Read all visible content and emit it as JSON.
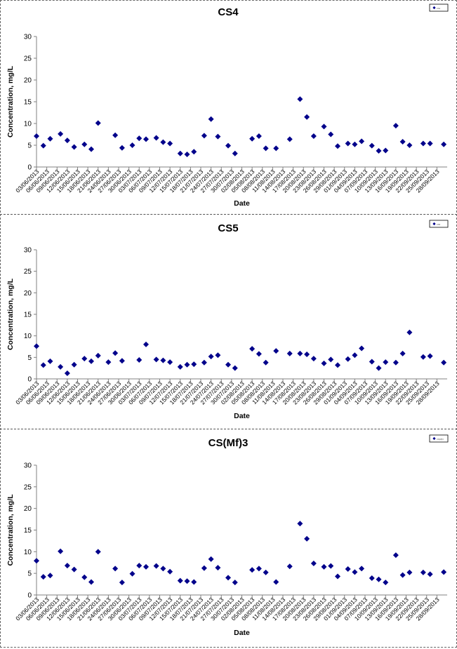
{
  "theme": {
    "marker_color": "#00008B",
    "axis_color": "#808080",
    "text_color": "#000000"
  },
  "chart_data": [
    {
      "type": "scatter",
      "title": "CS4",
      "xlabel": "Date",
      "ylabel": "Concentration, mg/L",
      "ylim": [
        0,
        30
      ],
      "yticks": [
        0,
        5,
        10,
        15,
        20,
        25,
        30
      ],
      "xlim": [
        "2013-06-03",
        "2013-10-01"
      ],
      "xtick_labels": [
        "03/06/2013",
        "06/06/2013",
        "09/06/2013",
        "12/06/2013",
        "15/06/2013",
        "18/06/2013",
        "21/06/2013",
        "24/06/2013",
        "27/06/2013",
        "30/06/2013",
        "03/07/2013",
        "06/07/2013",
        "09/07/2013",
        "12/07/2013",
        "15/07/2013",
        "18/07/2013",
        "21/07/2013",
        "24/07/2013",
        "27/07/2013",
        "30/07/2013",
        "02/08/2013",
        "05/08/2013",
        "08/08/2013",
        "11/08/2013",
        "14/08/2013",
        "17/08/2013",
        "20/08/2013",
        "23/08/2013",
        "26/08/2013",
        "29/08/2013",
        "01/09/2013",
        "04/09/2013",
        "07/09/2013",
        "10/09/2013",
        "13/09/2013",
        "16/09/2013",
        "19/09/2013",
        "22/09/2013",
        "25/09/2013",
        "28/09/2013"
      ],
      "legend": {
        "placement": "top-right",
        "entry": "CS4"
      },
      "grid": false,
      "points": [
        {
          "x": "2013-06-03",
          "y": 7.1
        },
        {
          "x": "2013-06-05",
          "y": 4.9
        },
        {
          "x": "2013-06-07",
          "y": 6.5
        },
        {
          "x": "2013-06-10",
          "y": 7.6
        },
        {
          "x": "2013-06-12",
          "y": 6.1
        },
        {
          "x": "2013-06-14",
          "y": 4.6
        },
        {
          "x": "2013-06-17",
          "y": 5.2
        },
        {
          "x": "2013-06-19",
          "y": 4.1
        },
        {
          "x": "2013-06-21",
          "y": 10.1
        },
        {
          "x": "2013-06-26",
          "y": 7.3
        },
        {
          "x": "2013-06-28",
          "y": 4.4
        },
        {
          "x": "2013-07-01",
          "y": 5.0
        },
        {
          "x": "2013-07-03",
          "y": 6.6
        },
        {
          "x": "2013-07-05",
          "y": 6.4
        },
        {
          "x": "2013-07-08",
          "y": 6.7
        },
        {
          "x": "2013-07-10",
          "y": 5.7
        },
        {
          "x": "2013-07-12",
          "y": 5.4
        },
        {
          "x": "2013-07-15",
          "y": 3.1
        },
        {
          "x": "2013-07-17",
          "y": 2.9
        },
        {
          "x": "2013-07-19",
          "y": 3.5
        },
        {
          "x": "2013-07-22",
          "y": 7.2
        },
        {
          "x": "2013-07-24",
          "y": 11.0
        },
        {
          "x": "2013-07-26",
          "y": 7.0
        },
        {
          "x": "2013-07-29",
          "y": 4.9
        },
        {
          "x": "2013-07-31",
          "y": 3.1
        },
        {
          "x": "2013-08-05",
          "y": 6.5
        },
        {
          "x": "2013-08-07",
          "y": 7.1
        },
        {
          "x": "2013-08-09",
          "y": 4.3
        },
        {
          "x": "2013-08-12",
          "y": 4.3
        },
        {
          "x": "2013-08-16",
          "y": 6.4
        },
        {
          "x": "2013-08-19",
          "y": 15.6
        },
        {
          "x": "2013-08-21",
          "y": 11.5
        },
        {
          "x": "2013-08-23",
          "y": 7.1
        },
        {
          "x": "2013-08-26",
          "y": 9.3
        },
        {
          "x": "2013-08-28",
          "y": 7.5
        },
        {
          "x": "2013-08-30",
          "y": 4.8
        },
        {
          "x": "2013-09-02",
          "y": 5.4
        },
        {
          "x": "2013-09-04",
          "y": 5.2
        },
        {
          "x": "2013-09-06",
          "y": 5.9
        },
        {
          "x": "2013-09-09",
          "y": 4.9
        },
        {
          "x": "2013-09-11",
          "y": 3.7
        },
        {
          "x": "2013-09-13",
          "y": 3.8
        },
        {
          "x": "2013-09-16",
          "y": 9.5
        },
        {
          "x": "2013-09-18",
          "y": 5.8
        },
        {
          "x": "2013-09-20",
          "y": 5.0
        },
        {
          "x": "2013-09-24",
          "y": 5.4
        },
        {
          "x": "2013-09-26",
          "y": 5.4
        },
        {
          "x": "2013-09-30",
          "y": 5.2
        }
      ]
    },
    {
      "type": "scatter",
      "title": "CS5",
      "xlabel": "Date",
      "ylabel": "Concentration, mg/L",
      "ylim": [
        0,
        30
      ],
      "yticks": [
        0,
        5,
        10,
        15,
        20,
        25,
        30
      ],
      "xlim": [
        "2013-06-03",
        "2013-10-01"
      ],
      "xtick_labels": [
        "03/06/2013",
        "06/06/2013",
        "09/06/2013",
        "12/06/2013",
        "15/06/2013",
        "18/06/2013",
        "21/06/2013",
        "24/06/2013",
        "27/06/2013",
        "30/06/2013",
        "03/07/2013",
        "06/07/2013",
        "09/07/2013",
        "12/07/2013",
        "15/07/2013",
        "18/07/2013",
        "21/07/2013",
        "24/07/2013",
        "27/07/2013",
        "30/07/2013",
        "02/08/2013",
        "05/08/2013",
        "08/08/2013",
        "11/08/2013",
        "14/08/2013",
        "17/08/2013",
        "20/08/2013",
        "23/08/2013",
        "26/08/2013",
        "29/08/2013",
        "01/09/2013",
        "04/09/2013",
        "07/09/2013",
        "10/09/2013",
        "13/09/2013",
        "16/09/2013",
        "19/09/2013",
        "22/09/2013",
        "25/09/2013",
        "28/09/2013"
      ],
      "legend": {
        "placement": "top-right",
        "entry": "CS5"
      },
      "grid": false,
      "points": [
        {
          "x": "2013-06-03",
          "y": 7.6
        },
        {
          "x": "2013-06-05",
          "y": 3.2
        },
        {
          "x": "2013-06-07",
          "y": 4.1
        },
        {
          "x": "2013-06-10",
          "y": 2.8
        },
        {
          "x": "2013-06-12",
          "y": 1.3
        },
        {
          "x": "2013-06-14",
          "y": 3.3
        },
        {
          "x": "2013-06-17",
          "y": 4.7
        },
        {
          "x": "2013-06-19",
          "y": 4.1
        },
        {
          "x": "2013-06-21",
          "y": 5.4
        },
        {
          "x": "2013-06-24",
          "y": 3.9
        },
        {
          "x": "2013-06-26",
          "y": 6.0
        },
        {
          "x": "2013-06-28",
          "y": 4.2
        },
        {
          "x": "2013-07-03",
          "y": 4.4
        },
        {
          "x": "2013-07-05",
          "y": 8.0
        },
        {
          "x": "2013-07-08",
          "y": 4.5
        },
        {
          "x": "2013-07-10",
          "y": 4.3
        },
        {
          "x": "2013-07-12",
          "y": 3.9
        },
        {
          "x": "2013-07-15",
          "y": 2.8
        },
        {
          "x": "2013-07-17",
          "y": 3.3
        },
        {
          "x": "2013-07-19",
          "y": 3.4
        },
        {
          "x": "2013-07-22",
          "y": 3.8
        },
        {
          "x": "2013-07-24",
          "y": 5.2
        },
        {
          "x": "2013-07-26",
          "y": 5.5
        },
        {
          "x": "2013-07-29",
          "y": 3.3
        },
        {
          "x": "2013-07-31",
          "y": 2.5
        },
        {
          "x": "2013-08-05",
          "y": 7.0
        },
        {
          "x": "2013-08-07",
          "y": 5.8
        },
        {
          "x": "2013-08-09",
          "y": 3.8
        },
        {
          "x": "2013-08-12",
          "y": 6.5
        },
        {
          "x": "2013-08-16",
          "y": 5.9
        },
        {
          "x": "2013-08-19",
          "y": 5.9
        },
        {
          "x": "2013-08-21",
          "y": 5.7
        },
        {
          "x": "2013-08-23",
          "y": 4.7
        },
        {
          "x": "2013-08-26",
          "y": 3.6
        },
        {
          "x": "2013-08-28",
          "y": 4.5
        },
        {
          "x": "2013-08-30",
          "y": 3.2
        },
        {
          "x": "2013-09-02",
          "y": 4.6
        },
        {
          "x": "2013-09-04",
          "y": 5.5
        },
        {
          "x": "2013-09-06",
          "y": 7.1
        },
        {
          "x": "2013-09-09",
          "y": 4.0
        },
        {
          "x": "2013-09-11",
          "y": 2.5
        },
        {
          "x": "2013-09-13",
          "y": 3.9
        },
        {
          "x": "2013-09-16",
          "y": 3.8
        },
        {
          "x": "2013-09-18",
          "y": 5.9
        },
        {
          "x": "2013-09-20",
          "y": 10.8
        },
        {
          "x": "2013-09-24",
          "y": 5.1
        },
        {
          "x": "2013-09-26",
          "y": 5.3
        },
        {
          "x": "2013-09-30",
          "y": 3.8
        }
      ]
    },
    {
      "type": "scatter",
      "title": "CS(Mf)3",
      "xlabel": "Date",
      "ylabel": "Concentration, mg/L",
      "ylim": [
        0,
        30
      ],
      "yticks": [
        0,
        5,
        10,
        15,
        20,
        25,
        30
      ],
      "xlim": [
        "2013-06-03",
        "2013-10-01"
      ],
      "xtick_labels": [
        "03/06/2013",
        "06/06/2013",
        "09/06/2013",
        "12/06/2013",
        "15/06/2013",
        "18/06/2013",
        "21/06/2013",
        "24/06/2013",
        "27/06/2013",
        "30/06/2013",
        "03/07/2013",
        "06/07/2013",
        "09/07/2013",
        "12/07/2013",
        "15/07/2013",
        "18/07/2013",
        "21/07/2013",
        "24/07/2013",
        "27/07/2013",
        "30/07/2013",
        "02/08/2013",
        "05/08/2013",
        "08/08/2013",
        "11/08/2013",
        "14/08/2013",
        "17/08/2013",
        "20/08/2013",
        "23/08/2013",
        "26/08/2013",
        "29/08/2013",
        "01/09/2013",
        "04/09/2013",
        "07/09/2013",
        "10/09/2013",
        "13/09/2013",
        "16/09/2013",
        "19/09/2013",
        "22/09/2013",
        "25/09/2013",
        "28/09/2013"
      ],
      "legend": {
        "placement": "top-right",
        "entry": "CS(Mf)3"
      },
      "grid": false,
      "points": [
        {
          "x": "2013-06-03",
          "y": 7.9
        },
        {
          "x": "2013-06-05",
          "y": 4.2
        },
        {
          "x": "2013-06-07",
          "y": 4.5
        },
        {
          "x": "2013-06-10",
          "y": 10.1
        },
        {
          "x": "2013-06-12",
          "y": 6.8
        },
        {
          "x": "2013-06-14",
          "y": 5.9
        },
        {
          "x": "2013-06-17",
          "y": 4.1
        },
        {
          "x": "2013-06-19",
          "y": 3.0
        },
        {
          "x": "2013-06-21",
          "y": 10.0
        },
        {
          "x": "2013-06-26",
          "y": 6.1
        },
        {
          "x": "2013-06-28",
          "y": 2.9
        },
        {
          "x": "2013-07-01",
          "y": 4.9
        },
        {
          "x": "2013-07-03",
          "y": 6.8
        },
        {
          "x": "2013-07-05",
          "y": 6.5
        },
        {
          "x": "2013-07-08",
          "y": 6.7
        },
        {
          "x": "2013-07-10",
          "y": 6.1
        },
        {
          "x": "2013-07-12",
          "y": 5.4
        },
        {
          "x": "2013-07-15",
          "y": 3.3
        },
        {
          "x": "2013-07-17",
          "y": 3.2
        },
        {
          "x": "2013-07-19",
          "y": 3.0
        },
        {
          "x": "2013-07-22",
          "y": 6.2
        },
        {
          "x": "2013-07-24",
          "y": 8.3
        },
        {
          "x": "2013-07-26",
          "y": 6.3
        },
        {
          "x": "2013-07-29",
          "y": 4.0
        },
        {
          "x": "2013-07-31",
          "y": 2.9
        },
        {
          "x": "2013-08-05",
          "y": 5.8
        },
        {
          "x": "2013-08-07",
          "y": 6.1
        },
        {
          "x": "2013-08-09",
          "y": 5.2
        },
        {
          "x": "2013-08-12",
          "y": 3.0
        },
        {
          "x": "2013-08-16",
          "y": 6.6
        },
        {
          "x": "2013-08-19",
          "y": 16.5
        },
        {
          "x": "2013-08-21",
          "y": 13.0
        },
        {
          "x": "2013-08-23",
          "y": 7.3
        },
        {
          "x": "2013-08-26",
          "y": 6.5
        },
        {
          "x": "2013-08-28",
          "y": 6.7
        },
        {
          "x": "2013-08-30",
          "y": 4.3
        },
        {
          "x": "2013-09-02",
          "y": 6.0
        },
        {
          "x": "2013-09-04",
          "y": 5.3
        },
        {
          "x": "2013-09-06",
          "y": 6.1
        },
        {
          "x": "2013-09-09",
          "y": 3.9
        },
        {
          "x": "2013-09-11",
          "y": 3.6
        },
        {
          "x": "2013-09-13",
          "y": 2.9
        },
        {
          "x": "2013-09-16",
          "y": 9.2
        },
        {
          "x": "2013-09-18",
          "y": 4.6
        },
        {
          "x": "2013-09-20",
          "y": 5.2
        },
        {
          "x": "2013-09-24",
          "y": 5.2
        },
        {
          "x": "2013-09-26",
          "y": 4.8
        },
        {
          "x": "2013-09-30",
          "y": 5.3
        }
      ]
    }
  ]
}
